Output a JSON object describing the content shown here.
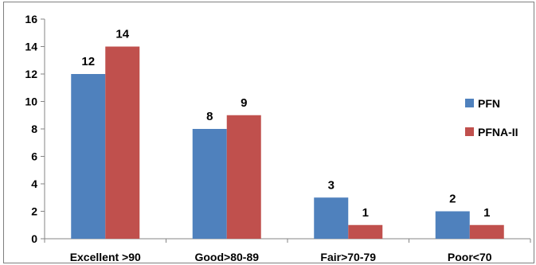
{
  "chart_data": {
    "type": "bar",
    "categories": [
      "Excellent >90",
      "Good>80-89",
      "Fair>70-79",
      "Poor<70"
    ],
    "series": [
      {
        "name": "PFN",
        "values": [
          12,
          8,
          3,
          2
        ],
        "color": "#4f81bd"
      },
      {
        "name": "PFNA-II",
        "values": [
          14,
          9,
          1,
          1
        ],
        "color": "#c0504d"
      }
    ],
    "title": "",
    "xlabel": "",
    "ylabel": "",
    "ylim": [
      0,
      16
    ],
    "yticks": [
      0,
      2,
      4,
      6,
      8,
      10,
      12,
      14,
      16
    ],
    "grid": false,
    "legend": "right"
  }
}
